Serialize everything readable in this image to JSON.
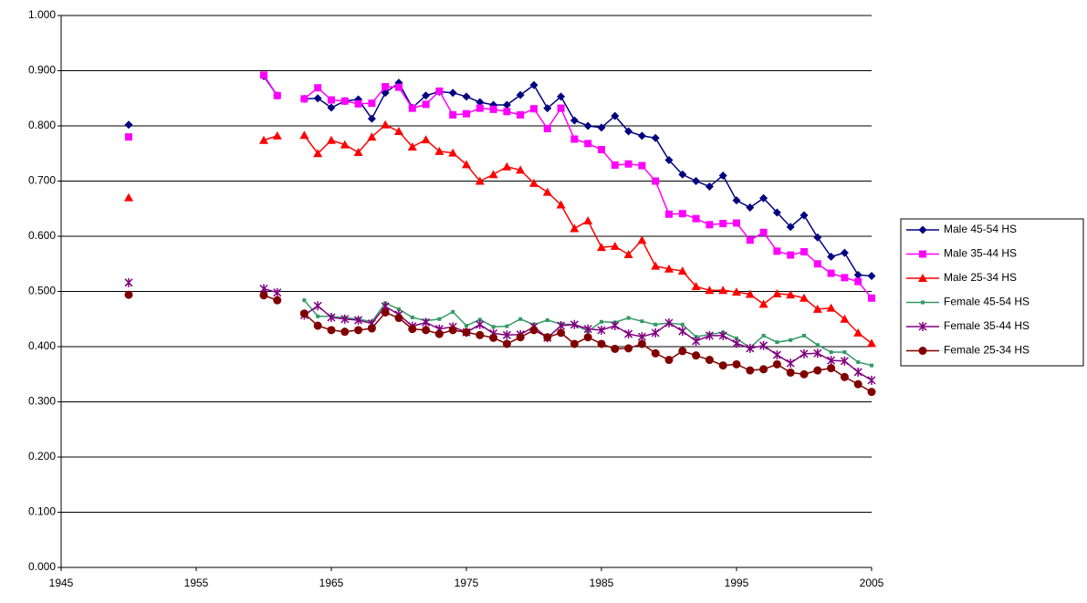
{
  "chart_data": {
    "type": "line",
    "x": [
      1950,
      1951,
      1960,
      1961,
      1962,
      1963,
      1964,
      1965,
      1966,
      1967,
      1968,
      1969,
      1970,
      1971,
      1972,
      1973,
      1974,
      1975,
      1976,
      1977,
      1978,
      1979,
      1980,
      1981,
      1982,
      1983,
      1984,
      1985,
      1986,
      1987,
      1988,
      1989,
      1990,
      1991,
      1992,
      1993,
      1994,
      1995,
      1996,
      1997,
      1998,
      1999,
      2000,
      2001,
      2002,
      2003,
      2004,
      2005
    ],
    "series": [
      {
        "name": "Male 45-54 HS",
        "color": "#000080",
        "marker": "diamond",
        "values": [
          0.802,
          null,
          0.89,
          0.855,
          null,
          0.849,
          0.85,
          0.833,
          0.845,
          0.848,
          0.813,
          0.86,
          0.878,
          0.833,
          0.855,
          0.862,
          0.86,
          0.853,
          0.843,
          0.838,
          0.838,
          0.856,
          0.874,
          0.832,
          0.853,
          0.81,
          0.8,
          0.797,
          0.818,
          0.79,
          0.782,
          0.778,
          0.738,
          0.712,
          0.7,
          0.69,
          0.71,
          0.665,
          0.652,
          0.669,
          0.643,
          0.617,
          0.638,
          0.598,
          0.563,
          0.57,
          0.53,
          0.528
        ]
      },
      {
        "name": "Male 35-44 HS",
        "color": "#ff00ff",
        "marker": "square",
        "values": [
          0.78,
          null,
          0.892,
          0.855,
          null,
          0.849,
          0.869,
          0.847,
          0.845,
          0.84,
          0.841,
          0.871,
          0.87,
          0.832,
          0.839,
          0.863,
          0.82,
          0.822,
          0.832,
          0.83,
          0.826,
          0.82,
          0.831,
          0.795,
          0.832,
          0.776,
          0.768,
          0.757,
          0.729,
          0.731,
          0.728,
          0.7,
          0.64,
          0.641,
          0.632,
          0.621,
          0.623,
          0.624,
          0.593,
          0.607,
          0.573,
          0.566,
          0.572,
          0.55,
          0.533,
          0.525,
          0.518,
          0.488
        ]
      },
      {
        "name": "Male 25-34 HS",
        "color": "#ff0000",
        "marker": "triangle",
        "values": [
          0.67,
          null,
          0.774,
          0.782,
          null,
          0.783,
          0.75,
          0.774,
          0.766,
          0.752,
          0.78,
          0.802,
          0.79,
          0.762,
          0.775,
          0.754,
          0.751,
          0.73,
          0.7,
          0.712,
          0.726,
          0.72,
          0.696,
          0.68,
          0.657,
          0.614,
          0.628,
          0.58,
          0.582,
          0.567,
          0.593,
          0.546,
          0.541,
          0.537,
          0.509,
          0.502,
          0.502,
          0.499,
          0.495,
          0.477,
          0.496,
          0.494,
          0.488,
          0.468,
          0.47,
          0.45,
          0.425,
          0.406
        ]
      },
      {
        "name": "Female 45-54 HS",
        "color": "#339966",
        "marker": "small-square",
        "values": [
          null,
          null,
          null,
          null,
          null,
          0.484,
          0.455,
          0.455,
          0.452,
          0.45,
          0.445,
          0.479,
          0.468,
          0.453,
          0.447,
          0.45,
          0.463,
          0.438,
          0.449,
          0.436,
          0.437,
          0.45,
          0.44,
          0.448,
          0.441,
          0.44,
          0.428,
          0.445,
          0.444,
          0.452,
          0.446,
          0.44,
          0.443,
          0.44,
          0.418,
          0.422,
          0.426,
          0.415,
          0.398,
          0.42,
          0.408,
          0.412,
          0.42,
          0.403,
          0.39,
          0.39,
          0.372,
          0.366
        ]
      },
      {
        "name": "Female 35-44 HS",
        "color": "#800080",
        "marker": "star",
        "values": [
          0.516,
          null,
          0.505,
          0.498,
          null,
          0.457,
          0.474,
          0.453,
          0.45,
          0.448,
          0.442,
          0.473,
          0.458,
          0.437,
          0.444,
          0.432,
          0.436,
          0.426,
          0.44,
          0.424,
          0.421,
          0.422,
          0.436,
          0.416,
          0.438,
          0.44,
          0.432,
          0.43,
          0.438,
          0.423,
          0.418,
          0.425,
          0.443,
          0.428,
          0.41,
          0.42,
          0.42,
          0.406,
          0.397,
          0.402,
          0.385,
          0.37,
          0.387,
          0.388,
          0.375,
          0.374,
          0.354,
          0.339
        ]
      },
      {
        "name": "Female 25-34 HS",
        "color": "#800000",
        "marker": "circle",
        "values": [
          0.494,
          null,
          0.493,
          0.484,
          null,
          0.46,
          0.438,
          0.43,
          0.427,
          0.43,
          0.433,
          0.462,
          0.452,
          0.432,
          0.43,
          0.423,
          0.43,
          0.426,
          0.421,
          0.416,
          0.405,
          0.417,
          0.43,
          0.417,
          0.425,
          0.405,
          0.417,
          0.405,
          0.396,
          0.397,
          0.405,
          0.388,
          0.376,
          0.392,
          0.384,
          0.376,
          0.366,
          0.368,
          0.357,
          0.359,
          0.368,
          0.353,
          0.35,
          0.357,
          0.361,
          0.345,
          0.332,
          0.318
        ]
      }
    ],
    "xlim": [
      1945,
      2005
    ],
    "xticks": [
      1945,
      1955,
      1965,
      1975,
      1985,
      1995,
      2005
    ],
    "ylim": [
      0,
      1
    ],
    "yticks": [
      {
        "value": 0,
        "label": "0.000"
      },
      {
        "value": 0.1,
        "label": "0.100"
      },
      {
        "value": 0.2,
        "label": "0.200"
      },
      {
        "value": 0.3,
        "label": "0.300"
      },
      {
        "value": 0.4,
        "label": "0.400"
      },
      {
        "value": 0.5,
        "label": "0.500"
      },
      {
        "value": 0.6,
        "label": "0.600"
      },
      {
        "value": 0.7,
        "label": "0.700"
      },
      {
        "value": 0.8,
        "label": "0.800"
      },
      {
        "value": 0.9,
        "label": "0.900"
      },
      {
        "value": 1,
        "label": "1.000"
      }
    ],
    "grid": true,
    "legend": "right"
  }
}
